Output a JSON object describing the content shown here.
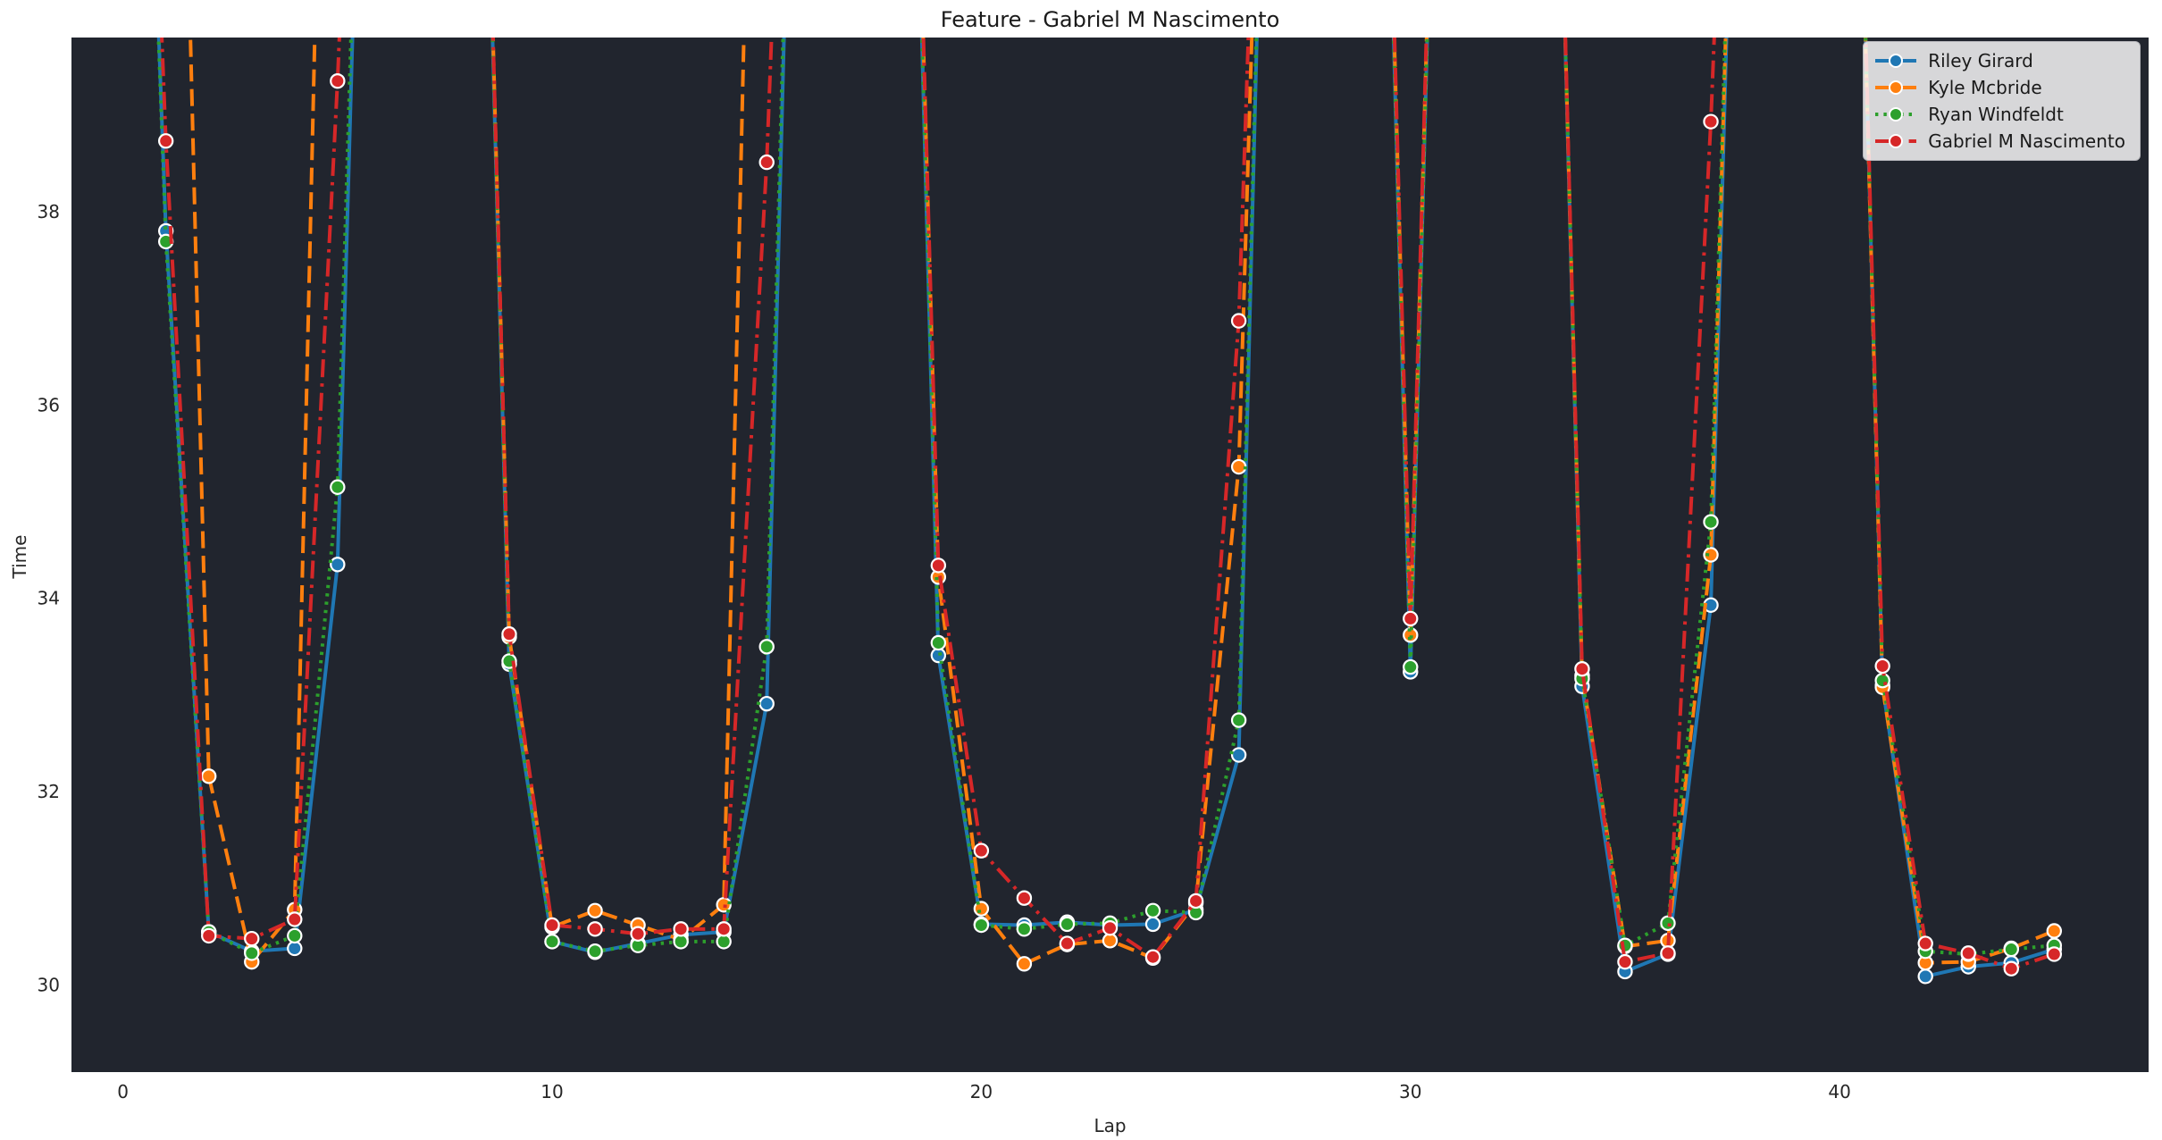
{
  "chart_data": {
    "type": "line",
    "title": "Feature - Gabriel M Nascimento",
    "xlabel": "Lap",
    "ylabel": "Time",
    "x": [
      0,
      1,
      2,
      3,
      4,
      5,
      6,
      7,
      8,
      9,
      10,
      11,
      12,
      13,
      14,
      15,
      16,
      17,
      18,
      19,
      20,
      21,
      22,
      23,
      24,
      25,
      26,
      27,
      28,
      29,
      30,
      31,
      32,
      33,
      34,
      35,
      36,
      37,
      38,
      39,
      40,
      41,
      42,
      43,
      44,
      45
    ],
    "x_ticks": [
      0,
      10,
      20,
      30,
      40
    ],
    "y_ticks": [
      30,
      32,
      34,
      36,
      38
    ],
    "xlim": [
      -1.2,
      47.2
    ],
    "ylim": [
      29.1,
      39.8
    ],
    "offscale_value": 50,
    "grid": false,
    "legend_position": "top-right",
    "background_color": "#21252e",
    "figure_color": "#ffffff",
    "text_color": "#262626",
    "marker": "circle",
    "marker_edge_color": "#ffffff",
    "series": [
      {
        "name": "Riley Girard",
        "color": "#1f77b4",
        "linestyle": "solid",
        "values": [
          null,
          37.8,
          30.55,
          30.35,
          30.38,
          34.35,
          null,
          null,
          null,
          33.32,
          30.45,
          30.34,
          30.43,
          30.52,
          30.55,
          32.91,
          null,
          null,
          null,
          33.41,
          30.63,
          30.62,
          30.65,
          30.62,
          30.63,
          30.78,
          32.38,
          null,
          null,
          null,
          33.24,
          null,
          null,
          null,
          33.09,
          30.14,
          30.32,
          33.93,
          null,
          null,
          null,
          33.1,
          30.09,
          30.19,
          30.23,
          30.37
        ]
      },
      {
        "name": "Kyle Mcbride",
        "color": "#ff7f0e",
        "linestyle": "dashed",
        "values": [
          null,
          null,
          32.16,
          30.24,
          30.78,
          null,
          null,
          null,
          null,
          33.6,
          30.6,
          30.77,
          30.62,
          30.47,
          30.83,
          null,
          null,
          null,
          null,
          34.22,
          30.79,
          30.22,
          30.42,
          30.46,
          30.28,
          30.85,
          35.36,
          null,
          null,
          null,
          33.62,
          null,
          null,
          null,
          33.2,
          30.4,
          30.46,
          34.45,
          null,
          null,
          null,
          33.08,
          30.23,
          30.24,
          30.38,
          30.56
        ]
      },
      {
        "name": "Ryan Windfeldt",
        "color": "#2ca02c",
        "linestyle": "dotted",
        "values": [
          null,
          37.69,
          30.55,
          30.33,
          30.51,
          35.15,
          null,
          null,
          null,
          33.35,
          30.45,
          30.35,
          30.41,
          30.45,
          30.45,
          33.5,
          null,
          null,
          null,
          33.54,
          30.62,
          30.58,
          30.63,
          30.64,
          30.77,
          30.75,
          32.74,
          null,
          null,
          null,
          33.29,
          null,
          null,
          null,
          33.17,
          30.41,
          30.64,
          34.79,
          null,
          null,
          null,
          33.15,
          30.35,
          30.32,
          30.37,
          30.41
        ]
      },
      {
        "name": "Gabriel M Nascimento",
        "color": "#d62728",
        "linestyle": "dashdot",
        "values": [
          null,
          38.73,
          30.51,
          30.48,
          30.68,
          39.35,
          null,
          null,
          null,
          33.63,
          30.62,
          30.58,
          30.53,
          30.58,
          30.58,
          38.51,
          null,
          null,
          null,
          34.34,
          31.39,
          30.9,
          30.43,
          30.59,
          30.29,
          30.87,
          36.87,
          null,
          null,
          null,
          33.79,
          null,
          null,
          null,
          33.27,
          30.24,
          30.33,
          38.93,
          null,
          null,
          null,
          33.3,
          30.43,
          30.33,
          30.17,
          30.32
        ]
      }
    ]
  }
}
